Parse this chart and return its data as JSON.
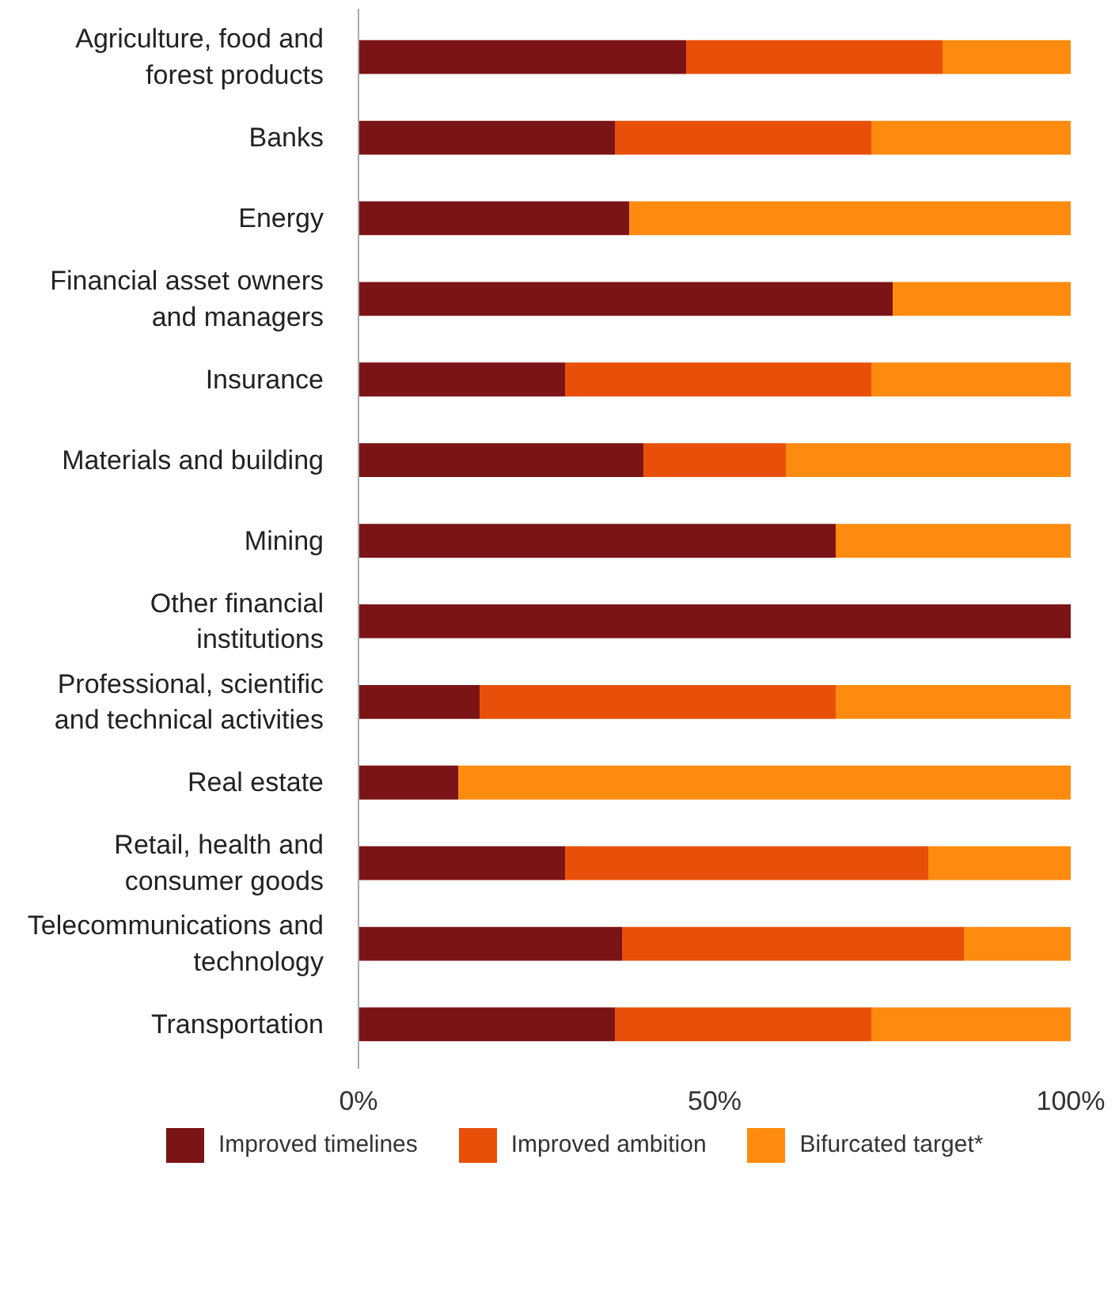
{
  "chart_data": {
    "type": "bar",
    "orientation": "horizontal",
    "stacked": true,
    "categories": [
      "Agriculture, food and forest products",
      "Banks",
      "Energy",
      "Financial asset owners and managers",
      "Insurance",
      "Materials and building",
      "Mining",
      "Other financial institutions",
      "Professional, scientific and technical activities",
      "Real estate",
      "Retail, health and consumer goods",
      "Telecommunications and technology",
      "Transportation"
    ],
    "series": [
      {
        "name": "Improved timelines",
        "color": "#7b1416",
        "values": [
          46,
          36,
          38,
          75,
          29,
          40,
          67,
          100,
          17,
          14,
          29,
          37,
          36
        ]
      },
      {
        "name": "Improved ambition",
        "color": "#e8500a",
        "values": [
          36,
          36,
          0,
          0,
          43,
          20,
          0,
          0,
          50,
          0,
          51,
          48,
          36
        ]
      },
      {
        "name": "Bifurcated target*",
        "color": "#ff8a10",
        "values": [
          18,
          28,
          62,
          25,
          28,
          40,
          33,
          0,
          33,
          86,
          20,
          15,
          28
        ]
      }
    ],
    "xlim": [
      0,
      100
    ],
    "xticks": [
      {
        "value": 0,
        "label": "0%"
      },
      {
        "value": 50,
        "label": "50%"
      },
      {
        "value": 100,
        "label": "100%"
      }
    ],
    "grid": false,
    "legend": "bottom"
  }
}
